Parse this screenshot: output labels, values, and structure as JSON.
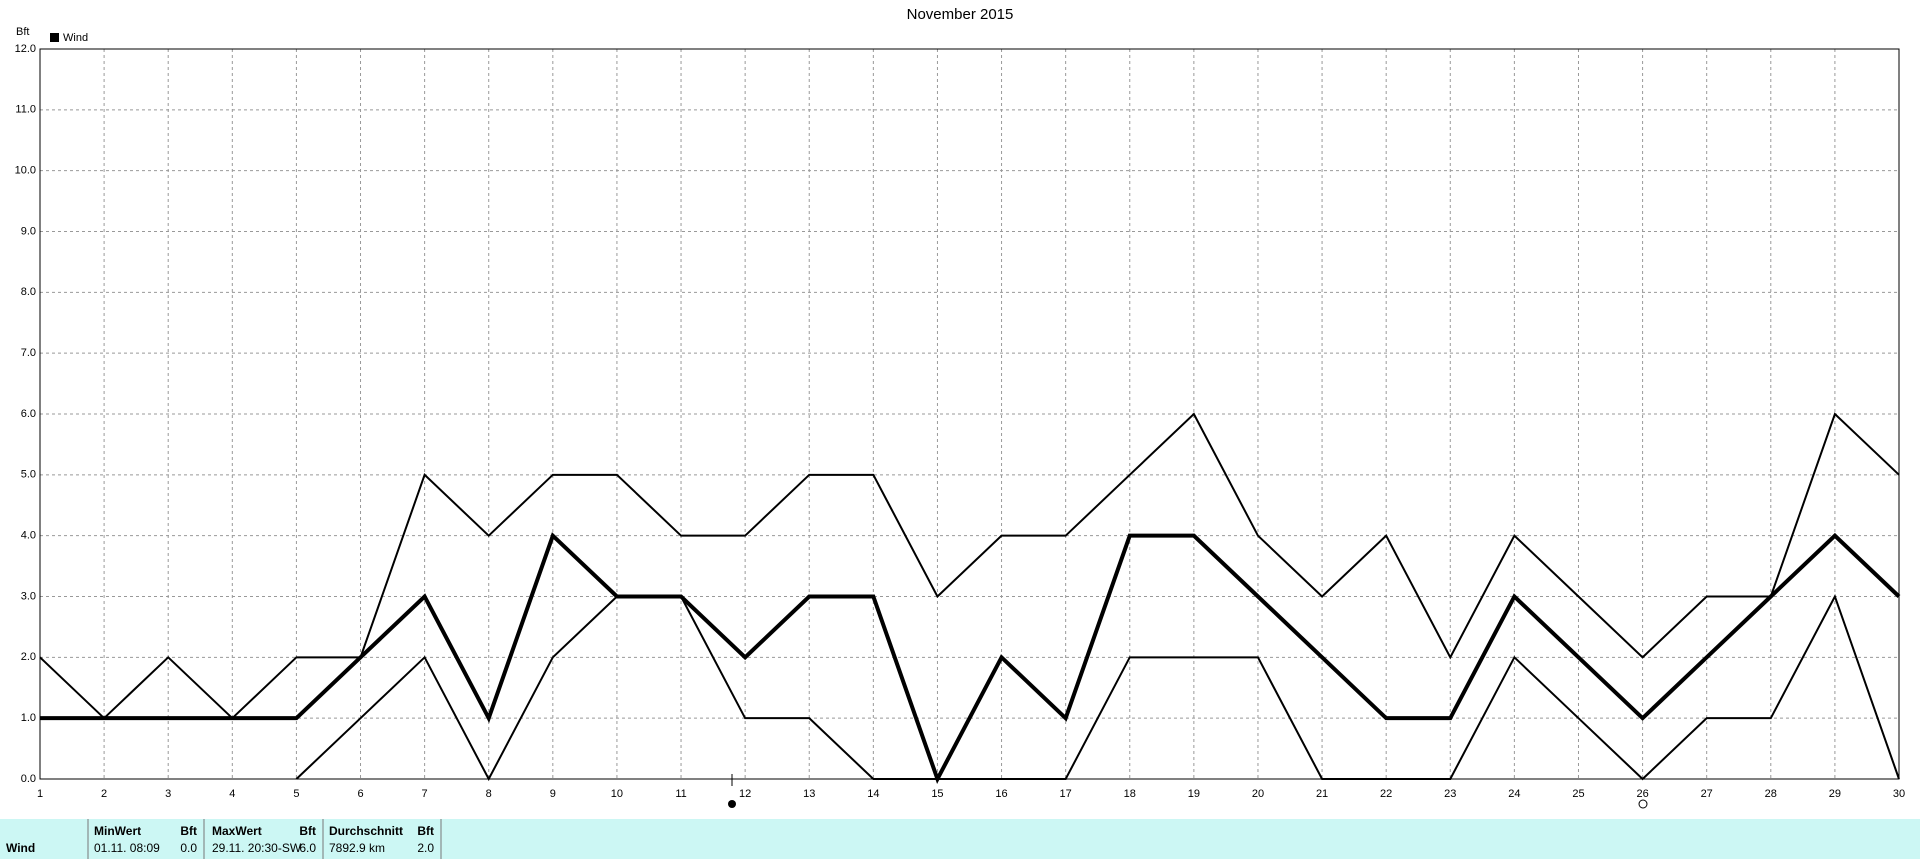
{
  "chart_data": {
    "type": "line",
    "title": "November 2015",
    "y_label": "Bft",
    "legend": "Wind",
    "legend_color": "#000000",
    "x": [
      1,
      2,
      3,
      4,
      5,
      6,
      7,
      8,
      9,
      10,
      11,
      12,
      13,
      14,
      15,
      16,
      17,
      18,
      19,
      20,
      21,
      22,
      23,
      24,
      25,
      26,
      27,
      28,
      29,
      30
    ],
    "series": [
      {
        "color": "#000000",
        "width": 2,
        "values": [
          2,
          1,
          2,
          1,
          2,
          2,
          5,
          4,
          5,
          5,
          4,
          4,
          5,
          5,
          3,
          4,
          4,
          5,
          6,
          4,
          3,
          4,
          2,
          4,
          3,
          2,
          3,
          3,
          6,
          5
        ]
      },
      {
        "color": "#000000",
        "width": 4,
        "values": [
          1,
          1,
          1,
          1,
          1,
          2,
          3,
          1,
          4,
          3,
          3,
          2,
          3,
          3,
          0,
          2,
          1,
          4,
          4,
          3,
          2,
          1,
          1,
          3,
          2,
          1,
          2,
          3,
          4,
          3
        ]
      },
      {
        "color": "#000000",
        "width": 2,
        "values": [
          null,
          null,
          null,
          null,
          0,
          1,
          2,
          0,
          2,
          3,
          3,
          1,
          1,
          0,
          0,
          0,
          0,
          2,
          2,
          2,
          0,
          0,
          0,
          2,
          1,
          0,
          1,
          1,
          3,
          0
        ]
      }
    ],
    "xlim": [
      1,
      30
    ],
    "xticks": [
      1,
      2,
      3,
      4,
      5,
      6,
      7,
      8,
      9,
      10,
      11,
      12,
      13,
      14,
      15,
      16,
      17,
      18,
      19,
      20,
      21,
      22,
      23,
      24,
      25,
      26,
      27,
      28,
      29,
      30
    ],
    "ylim": [
      0,
      12
    ],
    "yticks": [
      {
        "value": 0,
        "label": "0.0"
      },
      {
        "value": 1,
        "label": "1.0"
      },
      {
        "value": 2,
        "label": "2.0"
      },
      {
        "value": 3,
        "label": "3.0"
      },
      {
        "value": 4,
        "label": "4.0"
      },
      {
        "value": 5,
        "label": "5.0"
      },
      {
        "value": 6,
        "label": "6.0"
      },
      {
        "value": 7,
        "label": "7.0"
      },
      {
        "value": 8,
        "label": "8.0"
      },
      {
        "value": 9,
        "label": "9.0"
      },
      {
        "value": 10,
        "label": "10.0"
      },
      {
        "value": 11,
        "label": "11.0"
      },
      {
        "value": 12,
        "label": "12.0"
      }
    ],
    "grid": true
  },
  "table": {
    "label": "Wind",
    "headers": [
      [
        "MinWert",
        "Bft"
      ],
      [
        "MaxWert",
        "Bft"
      ],
      [
        "Durchschnitt",
        "Bft"
      ]
    ],
    "row": [
      [
        "01.11.  08:09",
        "0.0"
      ],
      [
        "29.11.  20:30-SW",
        "6.0"
      ],
      [
        "7892.9 km",
        "2.0"
      ]
    ]
  }
}
